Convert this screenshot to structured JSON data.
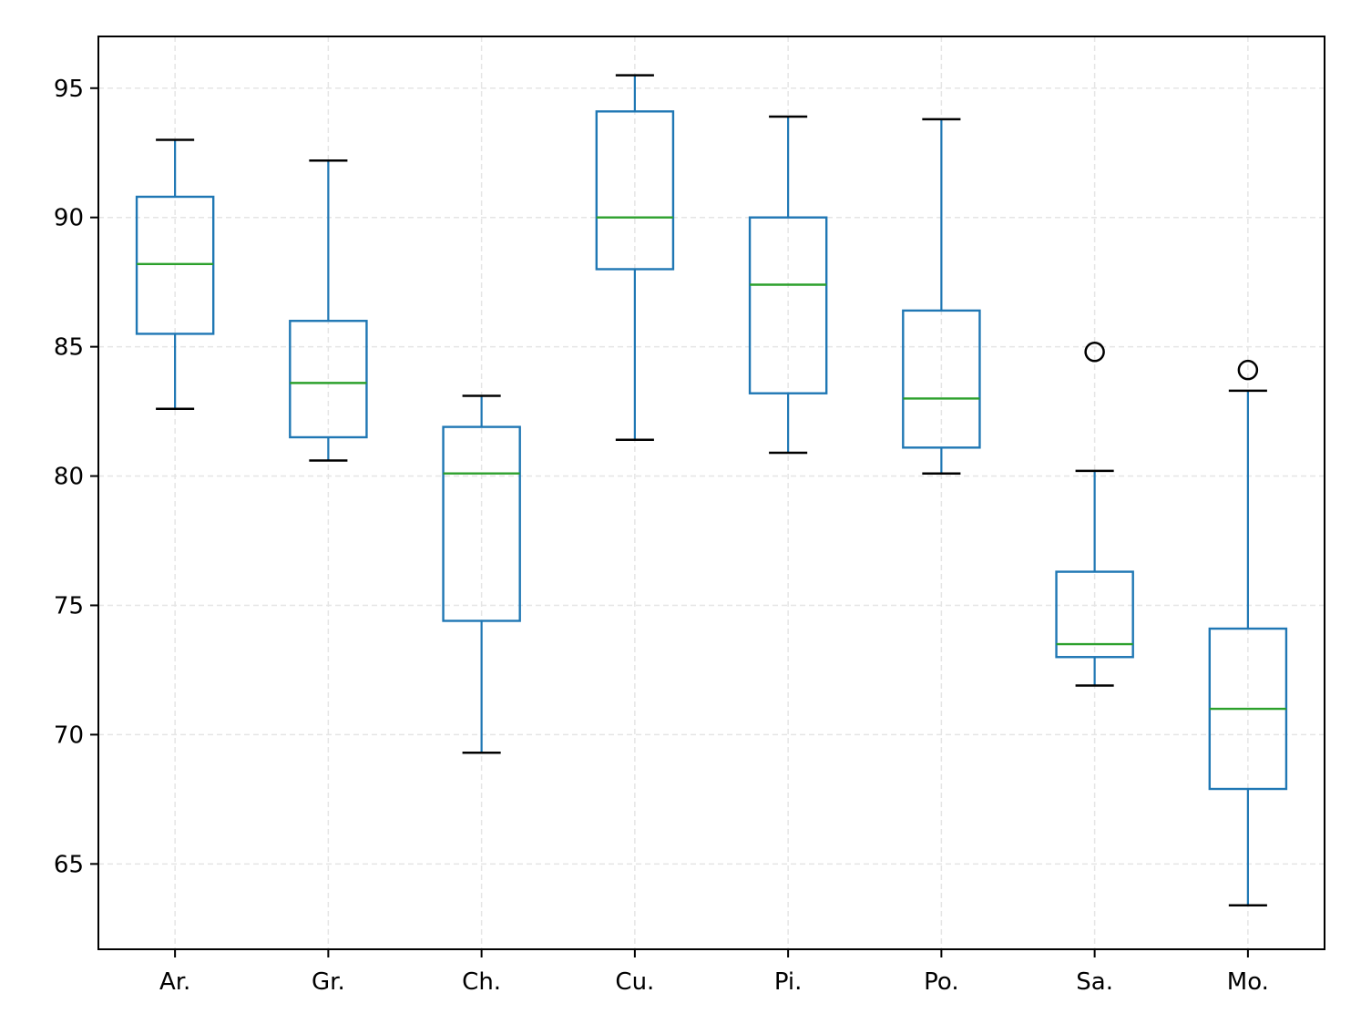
{
  "chart_data": {
    "type": "box",
    "title": "",
    "xlabel": "",
    "ylabel": "",
    "ylim": [
      61.7,
      97.0
    ],
    "yticks": [
      65,
      70,
      75,
      80,
      85,
      90,
      95
    ],
    "ytick_labels": [
      "65",
      "70",
      "75",
      "80",
      "85",
      "90",
      "95"
    ],
    "grid": true,
    "categories": [
      "Ar.",
      "Gr.",
      "Ch.",
      "Cu.",
      "Pi.",
      "Po.",
      "Sa.",
      "Mo."
    ],
    "boxes": [
      {
        "label": "Ar.",
        "whisker_low": 82.6,
        "q1": 85.5,
        "median": 88.2,
        "q3": 90.8,
        "whisker_high": 93.0,
        "outliers": []
      },
      {
        "label": "Gr.",
        "whisker_low": 80.6,
        "q1": 81.5,
        "median": 83.6,
        "q3": 86.0,
        "whisker_high": 92.2,
        "outliers": []
      },
      {
        "label": "Ch.",
        "whisker_low": 69.3,
        "q1": 74.4,
        "median": 80.1,
        "q3": 81.9,
        "whisker_high": 83.1,
        "outliers": []
      },
      {
        "label": "Cu.",
        "whisker_low": 81.4,
        "q1": 88.0,
        "median": 90.0,
        "q3": 94.1,
        "whisker_high": 95.5,
        "outliers": []
      },
      {
        "label": "Pi.",
        "whisker_low": 80.9,
        "q1": 83.2,
        "median": 87.4,
        "q3": 90.0,
        "whisker_high": 93.9,
        "outliers": []
      },
      {
        "label": "Po.",
        "whisker_low": 80.1,
        "q1": 81.1,
        "median": 83.0,
        "q3": 86.4,
        "whisker_high": 93.8,
        "outliers": []
      },
      {
        "label": "Sa.",
        "whisker_low": 71.9,
        "q1": 73.0,
        "median": 73.5,
        "q3": 76.3,
        "whisker_high": 80.2,
        "outliers": [
          84.8
        ]
      },
      {
        "label": "Mo.",
        "whisker_low": 63.4,
        "q1": 67.9,
        "median": 71.0,
        "q3": 74.1,
        "whisker_high": 83.3,
        "outliers": [
          84.1
        ]
      }
    ],
    "colors": {
      "box": "#1f77b4",
      "median": "#2ca02c",
      "cap": "#000000",
      "grid": "#e5e5e5",
      "axis": "#000000"
    }
  }
}
